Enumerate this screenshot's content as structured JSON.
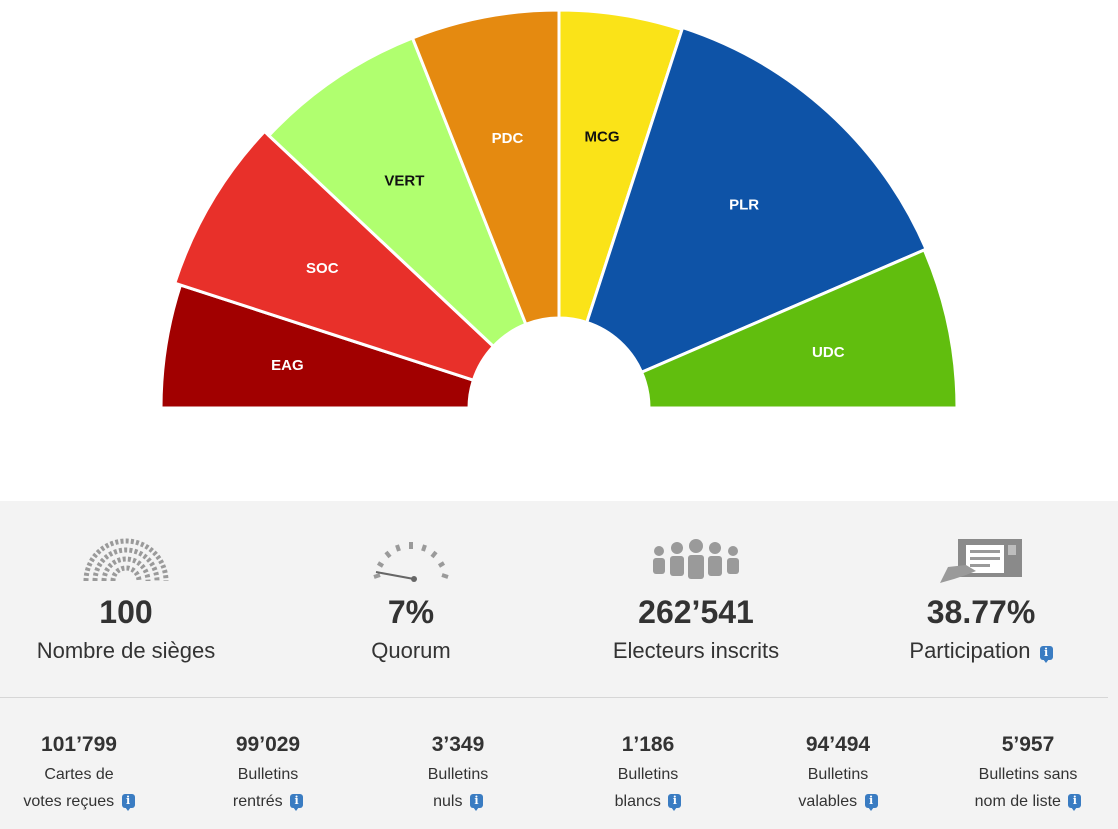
{
  "chart_data": {
    "type": "pie",
    "subtype": "hemicycle",
    "segments": [
      {
        "label": "EAG",
        "share": 0.1,
        "color": "#a10000",
        "text_color": "#ffffff"
      },
      {
        "label": "SOC",
        "share": 0.14,
        "color": "#e8302a",
        "text_color": "#ffffff"
      },
      {
        "label": "VERT",
        "share": 0.14,
        "color": "#b0ff6f",
        "text_color": "#111111"
      },
      {
        "label": "PDC",
        "share": 0.12,
        "color": "#e58a10",
        "text_color": "#ffffff"
      },
      {
        "label": "MCG",
        "share": 0.1,
        "color": "#fae318",
        "text_color": "#111111"
      },
      {
        "label": "PLR",
        "share": 0.27,
        "color": "#0e53a7",
        "text_color": "#ffffff"
      },
      {
        "label": "UDC",
        "share": 0.13,
        "color": "#61be0e",
        "text_color": "#ffffff"
      }
    ]
  },
  "stats": [
    {
      "icon": "hemicycle-icon",
      "value": "100",
      "label": "Nombre de sièges",
      "info": false
    },
    {
      "icon": "gauge-icon",
      "value": "7%",
      "label": "Quorum",
      "info": false
    },
    {
      "icon": "people-icon",
      "value": "262’541",
      "label": "Electeurs inscrits",
      "info": false
    },
    {
      "icon": "ballot-box-icon",
      "value": "38.77%",
      "label": "Participation",
      "info": true
    }
  ],
  "counts": [
    {
      "value": "101’799",
      "line1": "Cartes de",
      "line2": "votes reçues"
    },
    {
      "value": "99’029",
      "line1": "Bulletins",
      "line2": "rentrés"
    },
    {
      "value": "3’349",
      "line1": "Bulletins",
      "line2": "nuls"
    },
    {
      "value": "1’186",
      "line1": "Bulletins",
      "line2": "blancs"
    },
    {
      "value": "94’494",
      "line1": "Bulletins",
      "line2": "valables"
    },
    {
      "value": "5’957",
      "line1": "Bulletins sans",
      "line2": "nom de liste"
    }
  ],
  "info_glyph": "i",
  "colors": {
    "panel_bg": "#f3f3f3",
    "text": "#333333",
    "icon_grey": "#9a9a9a",
    "info_blue": "#3a7cc2"
  }
}
